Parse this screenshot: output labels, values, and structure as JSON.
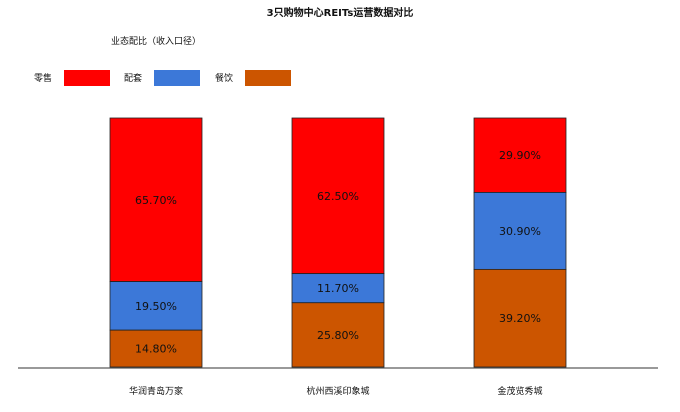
{
  "chart_data": {
    "type": "bar",
    "stacked": true,
    "normalized": true,
    "title": "3只购物中心REITs运营数据对比",
    "subtitle": "业态配比（收入口径）",
    "categories": [
      "华润青岛万家",
      "杭州西溪印象城",
      "金茂览秀城"
    ],
    "series": [
      {
        "name": "零售",
        "color": "#ff0000",
        "values": [
          65.7,
          62.5,
          29.9
        ],
        "labels": [
          "65.70%",
          "62.50%",
          "29.90%"
        ]
      },
      {
        "name": "配套",
        "color": "#3c78d8",
        "values": [
          19.5,
          11.7,
          30.9
        ],
        "labels": [
          "19.50%",
          "11.70%",
          "30.90%"
        ]
      },
      {
        "name": "餐饮",
        "color": "#cc5500",
        "values": [
          14.8,
          25.8,
          39.2
        ],
        "labels": [
          "14.80%",
          "25.80%",
          "39.20%"
        ]
      }
    ],
    "ylim": [
      0,
      100
    ],
    "legend": "top-left",
    "grid": false
  }
}
